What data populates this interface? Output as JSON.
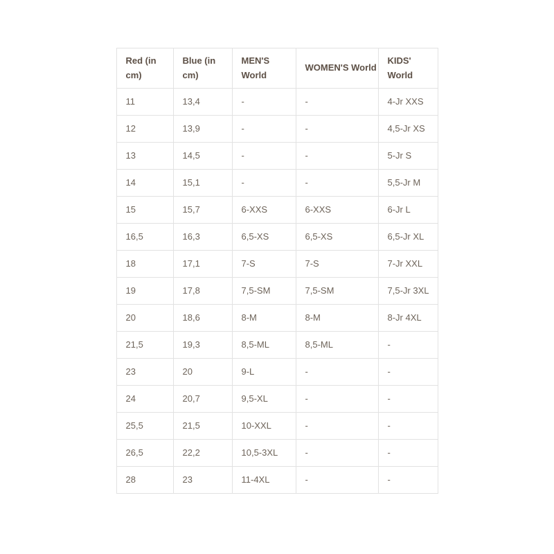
{
  "table": {
    "name": "size-chart",
    "columns": [
      {
        "label": "Red (in cm)"
      },
      {
        "label": "Blue (in cm)"
      },
      {
        "label": "MEN'S World"
      },
      {
        "label": "WOMEN'S World"
      },
      {
        "label": "KIDS' World"
      }
    ],
    "rows": [
      [
        "11",
        "13,4",
        "-",
        "-",
        "4-Jr XXS"
      ],
      [
        "12",
        "13,9",
        "-",
        "-",
        "4,5-Jr XS"
      ],
      [
        "13",
        "14,5",
        "-",
        "-",
        "5-Jr S"
      ],
      [
        "14",
        "15,1",
        "-",
        "-",
        "5,5-Jr M"
      ],
      [
        "15",
        "15,7",
        "6-XXS",
        "6-XXS",
        "6-Jr L"
      ],
      [
        "16,5",
        "16,3",
        "6,5-XS",
        "6,5-XS",
        "6,5-Jr XL"
      ],
      [
        "18",
        "17,1",
        "7-S",
        "7-S",
        "7-Jr XXL"
      ],
      [
        "19",
        "17,8",
        "7,5-SM",
        "7,5-SM",
        "7,5-Jr 3XL"
      ],
      [
        "20",
        "18,6",
        "8-M",
        "8-M",
        "8-Jr 4XL"
      ],
      [
        "21,5",
        "19,3",
        "8,5-ML",
        "8,5-ML",
        "-"
      ],
      [
        "23",
        "20",
        "9-L",
        "-",
        "-"
      ],
      [
        "24",
        "20,7",
        "9,5-XL",
        "-",
        "-"
      ],
      [
        "25,5",
        "21,5",
        "10-XXL",
        "-",
        "-"
      ],
      [
        "26,5",
        "22,2",
        "10,5-3XL",
        "-",
        "-"
      ],
      [
        "28",
        "23",
        "11-4XL",
        "-",
        "-"
      ]
    ],
    "colors": {
      "border": "#e2e2e2",
      "header_text": "#5d5046",
      "body_text": "#6e645a",
      "page_background": "#ffffff"
    }
  }
}
